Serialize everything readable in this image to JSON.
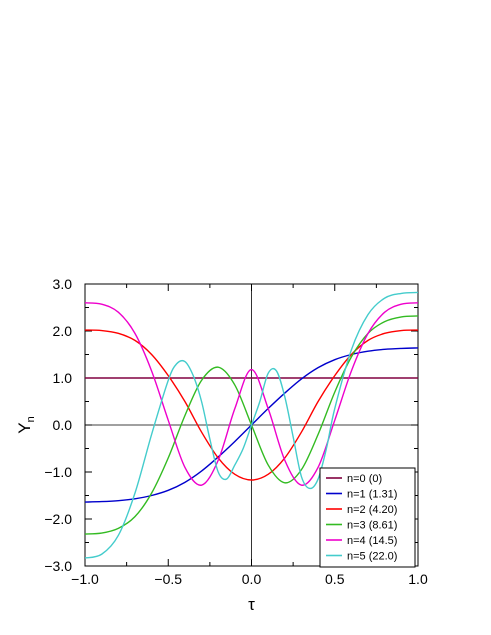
{
  "chart_data": {
    "type": "line",
    "title": "",
    "xlabel": "τ",
    "ylabel": "Y",
    "ylabel_subscript": "n",
    "xlim": [
      -1.0,
      1.0
    ],
    "ylim": [
      -3.0,
      3.0
    ],
    "x_ticks": [
      -1.0,
      -0.5,
      0.0,
      0.5,
      1.0
    ],
    "x_tick_labels": [
      "−1.0",
      "−0.5",
      "0.0",
      "0.5",
      "1.0"
    ],
    "y_ticks": [
      -3.0,
      -2.0,
      -1.0,
      0.0,
      1.0,
      2.0,
      3.0
    ],
    "y_tick_labels": [
      "−3.0",
      "−2.0",
      "−1.0",
      "0.0",
      "1.0",
      "2.0",
      "3.0"
    ],
    "zero_lines": true,
    "legend_position": "bottom-right",
    "series": [
      {
        "name": "n=0 (0)",
        "color": "#800040",
        "x": [
          -1.0,
          -0.5,
          0.0,
          0.5,
          1.0
        ],
        "y": [
          1.0,
          1.0,
          1.0,
          1.0,
          1.0
        ]
      },
      {
        "name": "n=1 (1.31)",
        "color": "#0000cc",
        "x": [
          -1.0,
          -0.9,
          -0.8,
          -0.7,
          -0.6,
          -0.5,
          -0.4,
          -0.3,
          -0.2,
          -0.1,
          0.0,
          0.1,
          0.2,
          0.3,
          0.4,
          0.5,
          0.6,
          0.7,
          0.8,
          0.9,
          1.0
        ],
        "y": [
          -1.64,
          -1.63,
          -1.61,
          -1.57,
          -1.5,
          -1.39,
          -1.22,
          -0.98,
          -0.68,
          -0.35,
          0.0,
          0.35,
          0.68,
          0.98,
          1.22,
          1.39,
          1.5,
          1.57,
          1.61,
          1.63,
          1.64
        ]
      },
      {
        "name": "n=2 (4.20)",
        "color": "#ff0000",
        "x": [
          -1.0,
          -0.9,
          -0.8,
          -0.7,
          -0.6,
          -0.5,
          -0.4,
          -0.3,
          -0.2,
          -0.1,
          0.0,
          0.1,
          0.2,
          0.3,
          0.4,
          0.5,
          0.6,
          0.7,
          0.8,
          0.9,
          1.0
        ],
        "y": [
          2.02,
          2.01,
          1.95,
          1.8,
          1.5,
          1.05,
          0.5,
          -0.15,
          -0.7,
          -1.05,
          -1.17,
          -1.05,
          -0.7,
          -0.15,
          0.5,
          1.05,
          1.5,
          1.8,
          1.95,
          2.01,
          2.02
        ]
      },
      {
        "name": "n=3 (8.61)",
        "color": "#33bb22",
        "x": [
          -1.0,
          -0.9,
          -0.8,
          -0.7,
          -0.6,
          -0.5,
          -0.4,
          -0.3,
          -0.2,
          -0.1,
          0.0,
          0.1,
          0.2,
          0.3,
          0.4,
          0.5,
          0.6,
          0.7,
          0.8,
          0.9,
          1.0
        ],
        "y": [
          -2.32,
          -2.3,
          -2.2,
          -1.95,
          -1.45,
          -0.7,
          0.2,
          0.95,
          1.23,
          0.85,
          0.0,
          -0.85,
          -1.23,
          -0.95,
          -0.2,
          0.7,
          1.45,
          1.95,
          2.2,
          2.3,
          2.32
        ]
      },
      {
        "name": "n=4 (14.5)",
        "color": "#ee00cc",
        "x": [
          -1.0,
          -0.9,
          -0.8,
          -0.7,
          -0.6,
          -0.5,
          -0.4,
          -0.3,
          -0.2,
          -0.1,
          0.0,
          0.1,
          0.2,
          0.3,
          0.4,
          0.5,
          0.6,
          0.7,
          0.8,
          0.9,
          1.0
        ],
        "y": [
          2.6,
          2.57,
          2.4,
          1.95,
          1.15,
          0.1,
          -0.9,
          -1.28,
          -0.75,
          0.35,
          1.18,
          0.35,
          -0.75,
          -1.28,
          -0.9,
          0.1,
          1.15,
          1.95,
          2.4,
          2.57,
          2.6
        ]
      },
      {
        "name": "n=5 (22.0)",
        "color": "#44cccc",
        "x": [
          -1.0,
          -0.9,
          -0.8,
          -0.7,
          -0.6,
          -0.5,
          -0.45,
          -0.4,
          -0.35,
          -0.3,
          -0.25,
          -0.2,
          -0.15,
          -0.1,
          -0.05,
          0.0,
          0.05,
          0.1,
          0.15,
          0.2,
          0.25,
          0.3,
          0.35,
          0.4,
          0.45,
          0.5,
          0.6,
          0.7,
          0.8,
          0.9,
          1.0
        ],
        "y": [
          -2.83,
          -2.75,
          -2.35,
          -1.45,
          -0.2,
          0.95,
          1.3,
          1.35,
          1.05,
          0.5,
          -0.3,
          -1.0,
          -1.15,
          -0.85,
          -0.5,
          0.0,
          0.5,
          1.1,
          1.15,
          0.6,
          -0.25,
          -1.1,
          -1.35,
          -1.15,
          -0.5,
          0.35,
          1.6,
          2.35,
          2.7,
          2.8,
          2.82
        ]
      }
    ]
  }
}
